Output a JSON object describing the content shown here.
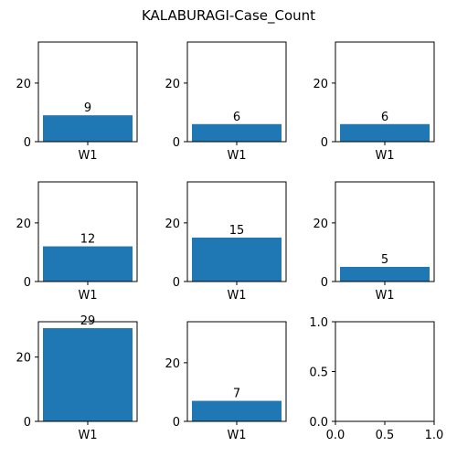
{
  "title": "KALABURAGI-Case_Count",
  "chart_data": [
    {
      "type": "bar",
      "categories": [
        "W1"
      ],
      "values": [
        9
      ],
      "data_labels": [
        "9"
      ],
      "ylim": [
        0,
        34
      ],
      "yticks": [
        0,
        20
      ]
    },
    {
      "type": "bar",
      "categories": [
        "W1"
      ],
      "values": [
        6
      ],
      "data_labels": [
        "6"
      ],
      "ylim": [
        0,
        34
      ],
      "yticks": [
        0,
        20
      ]
    },
    {
      "type": "bar",
      "categories": [
        "W1"
      ],
      "values": [
        6
      ],
      "data_labels": [
        "6"
      ],
      "ylim": [
        0,
        34
      ],
      "yticks": [
        0,
        20
      ]
    },
    {
      "type": "bar",
      "categories": [
        "W1"
      ],
      "values": [
        12
      ],
      "data_labels": [
        "12"
      ],
      "ylim": [
        0,
        34
      ],
      "yticks": [
        0,
        20
      ]
    },
    {
      "type": "bar",
      "categories": [
        "W1"
      ],
      "values": [
        15
      ],
      "data_labels": [
        "15"
      ],
      "ylim": [
        0,
        34
      ],
      "yticks": [
        0,
        20
      ]
    },
    {
      "type": "bar",
      "categories": [
        "W1"
      ],
      "values": [
        5
      ],
      "data_labels": [
        "5"
      ],
      "ylim": [
        0,
        34
      ],
      "yticks": [
        0,
        20
      ]
    },
    {
      "type": "bar",
      "categories": [
        "W1"
      ],
      "values": [
        29
      ],
      "data_labels": [
        "29"
      ],
      "ylim": [
        0,
        31
      ],
      "yticks": [
        0,
        20
      ]
    },
    {
      "type": "bar",
      "categories": [
        "W1"
      ],
      "values": [
        7
      ],
      "data_labels": [
        "7"
      ],
      "ylim": [
        0,
        34
      ],
      "yticks": [
        0,
        20
      ]
    },
    {
      "type": "empty",
      "xlim": [
        0,
        1
      ],
      "ylim": [
        0,
        1
      ],
      "xticks": [
        "0.0",
        "0.5",
        "1.0"
      ],
      "yticks": [
        "0.0",
        "0.5",
        "1.0"
      ]
    }
  ],
  "colors": {
    "bar": "#1f77b4",
    "axis": "#000000"
  }
}
